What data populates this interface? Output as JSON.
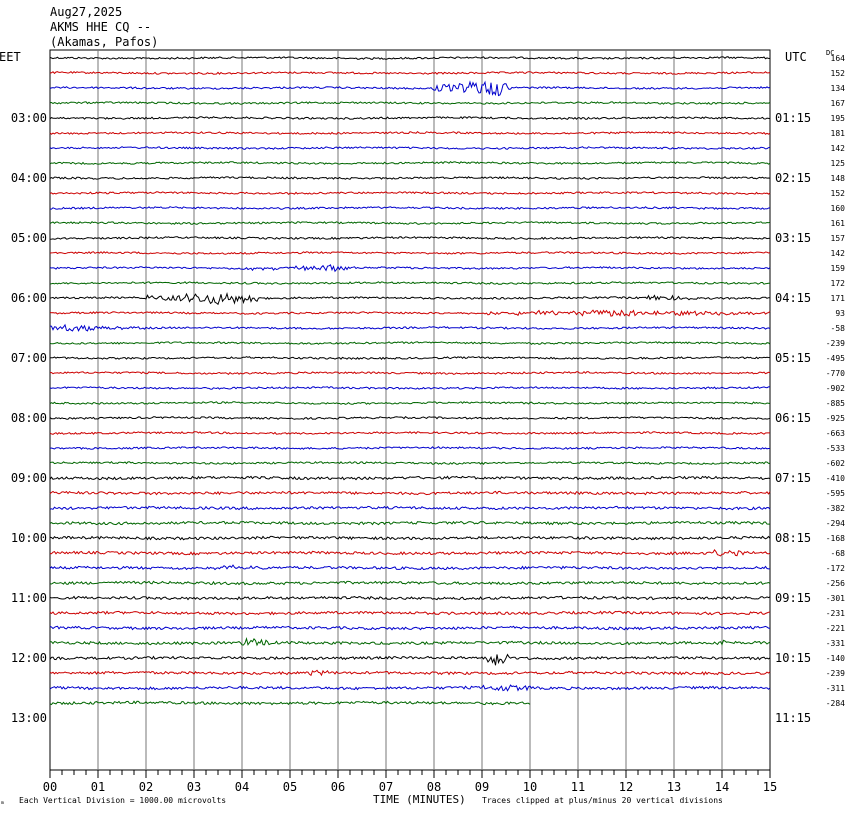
{
  "header": {
    "date": "Aug27,2025",
    "station": "AKMS HHE CQ --",
    "location": "(Akamas, Pafos)"
  },
  "axis": {
    "left_zone": "EET",
    "right_zone": "UTC",
    "dc_label": "DC",
    "xlabel": "TIME (MINUTES)",
    "footer_scale": "Each Vertical Division = 1000.00 microvolts",
    "footer_clip": "Traces clipped at plus/minus 20 vertical divisions",
    "corner_mark": "ₘ"
  },
  "chart_data": {
    "type": "line",
    "title": "AKMS HHE CQ --",
    "xlabel": "TIME (MINUTES)",
    "xlim": [
      0,
      15
    ],
    "x_ticks": [
      "00",
      "01",
      "02",
      "03",
      "04",
      "05",
      "06",
      "07",
      "08",
      "09",
      "10",
      "11",
      "12",
      "13",
      "14",
      "15"
    ],
    "left_hour_labels": [
      "03:00",
      "04:00",
      "05:00",
      "06:00",
      "07:00",
      "08:00",
      "09:00",
      "10:00",
      "11:00",
      "12:00",
      "13:00"
    ],
    "right_hour_labels": [
      "01:15",
      "02:15",
      "03:15",
      "04:15",
      "05:15",
      "06:15",
      "07:15",
      "08:15",
      "09:15",
      "10:15",
      "11:15"
    ],
    "trace_colors": [
      "#000000",
      "#cc0000",
      "#0000cc",
      "#006600"
    ],
    "dc_offsets": [
      164,
      152,
      134,
      167,
      195,
      181,
      142,
      125,
      148,
      152,
      160,
      161,
      157,
      142,
      159,
      172,
      171,
      93,
      -58,
      -239,
      -495,
      -770,
      -902,
      -885,
      -925,
      -663,
      -533,
      -602,
      -410,
      -595,
      -382,
      -294,
      -168,
      -68,
      -172,
      -256,
      -301,
      -231,
      -221,
      -331,
      -140,
      -239,
      -311,
      -284
    ],
    "trace_end_minute_last": 10.0,
    "events": [
      {
        "trace": 2,
        "start": 8.0,
        "end": 9.6,
        "peak": 9.1,
        "amplitude": 9
      },
      {
        "trace": 14,
        "start": 4.0,
        "end": 6.2,
        "peak": 5.9,
        "amplitude": 3
      },
      {
        "trace": 16,
        "start": 2.0,
        "end": 4.4,
        "peak": 3.5,
        "amplitude": 6
      },
      {
        "trace": 16,
        "start": 12.4,
        "end": 13.4,
        "peak": 12.7,
        "amplitude": 3
      },
      {
        "trace": 17,
        "start": 9.0,
        "end": 15.0,
        "peak": 12.0,
        "amplitude": 3
      },
      {
        "trace": 18,
        "start": 0.0,
        "end": 2.0,
        "peak": 0.5,
        "amplitude": 3
      },
      {
        "trace": 33,
        "start": 13.8,
        "end": 14.6,
        "peak": 14.1,
        "amplitude": 4
      },
      {
        "trace": 34,
        "start": 3.6,
        "end": 4.4,
        "peak": 3.9,
        "amplitude": 3
      },
      {
        "trace": 39,
        "start": 4.0,
        "end": 5.0,
        "peak": 4.2,
        "amplitude": 4
      },
      {
        "trace": 39,
        "start": 13.8,
        "end": 14.2,
        "peak": 14.0,
        "amplitude": 3
      },
      {
        "trace": 40,
        "start": 9.1,
        "end": 9.6,
        "peak": 9.3,
        "amplitude": 9
      },
      {
        "trace": 41,
        "start": 5.3,
        "end": 5.8,
        "peak": 5.5,
        "amplitude": 3
      },
      {
        "trace": 42,
        "start": 9.0,
        "end": 10.0,
        "peak": 9.6,
        "amplitude": 4
      }
    ]
  }
}
